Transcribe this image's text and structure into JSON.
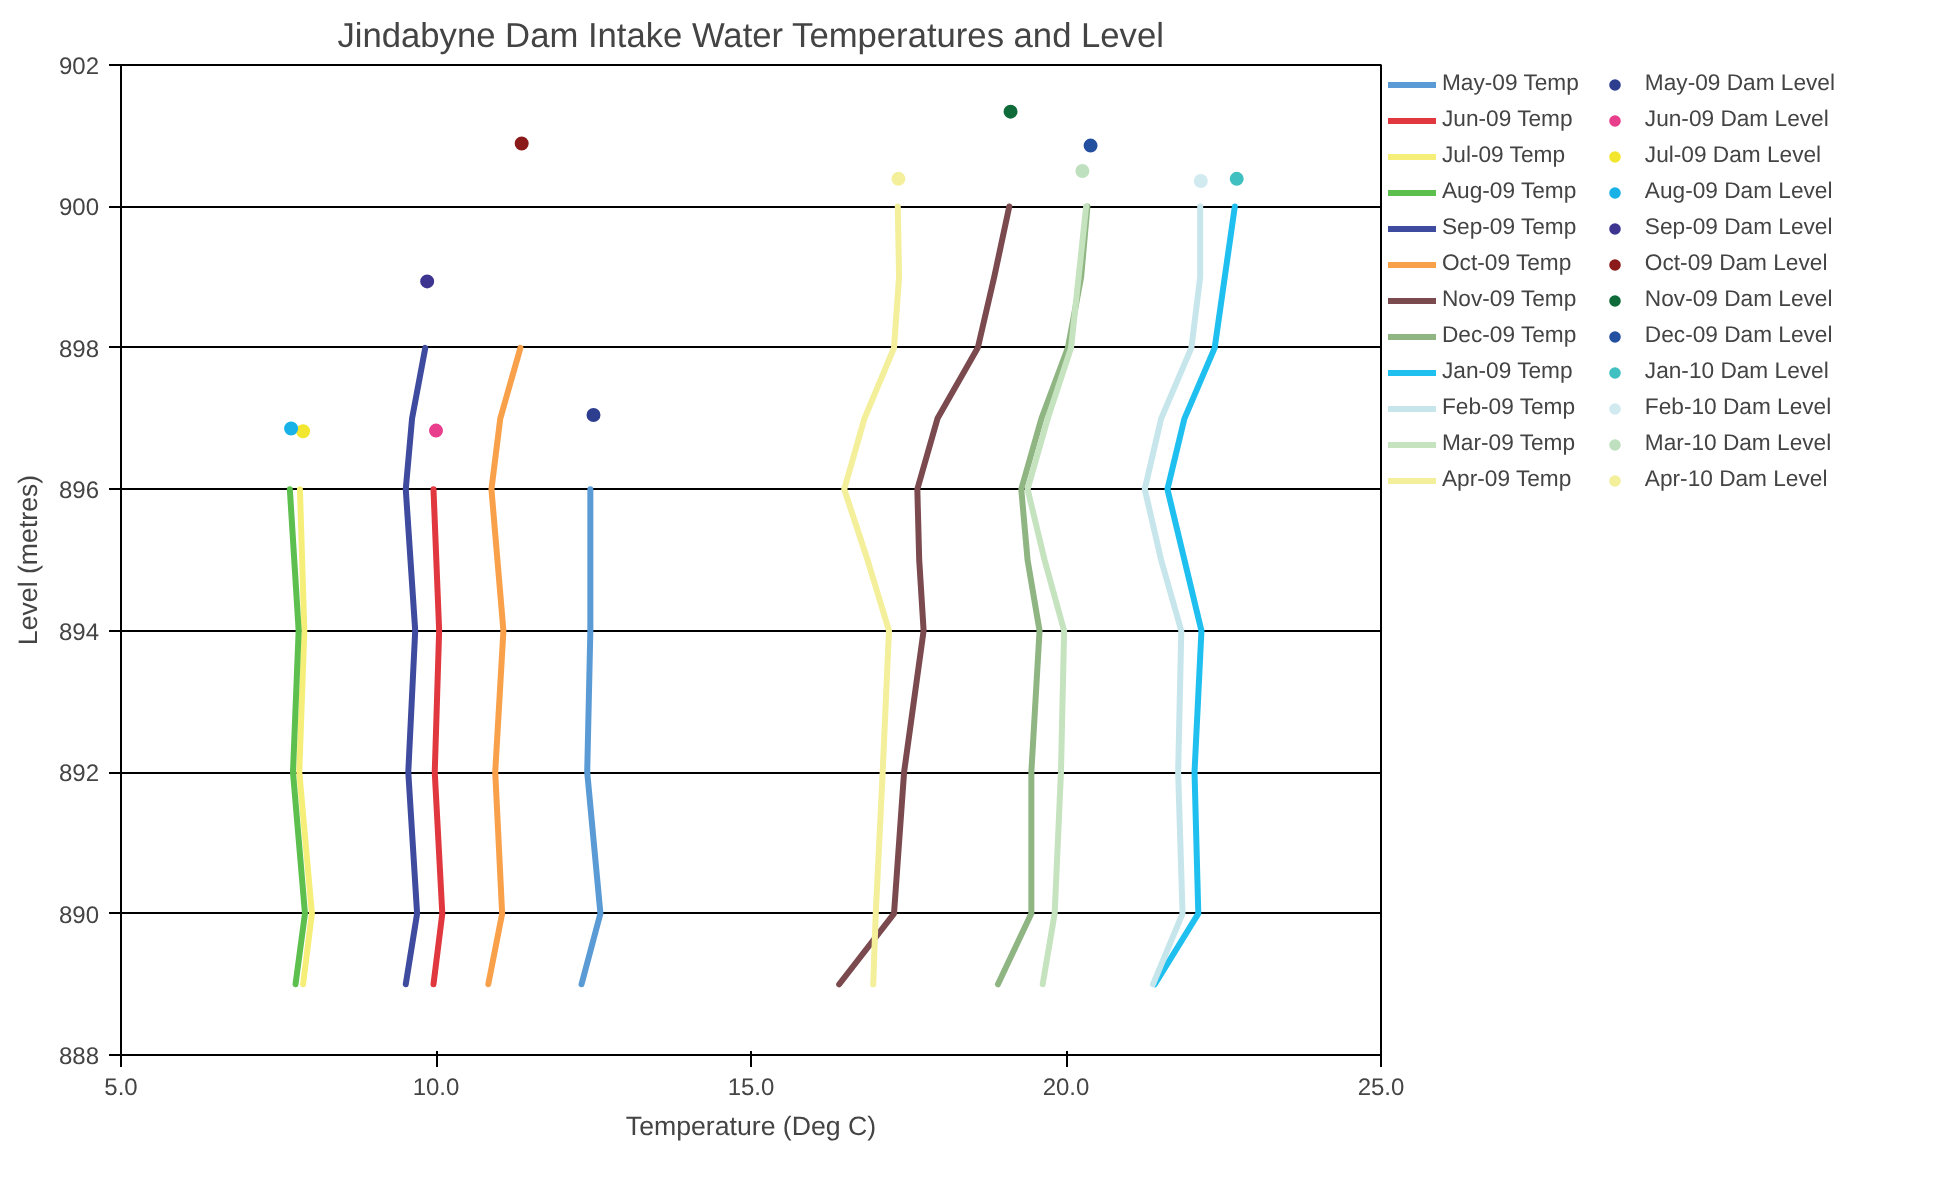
{
  "chart_data": {
    "type": "line",
    "title": "Jindabyne Dam Intake Water Temperatures and Level",
    "xlabel": "Temperature (Deg C)",
    "ylabel": "Level (metres)",
    "xlim": [
      5,
      25
    ],
    "xticks": [
      {
        "value": 5,
        "label": "5.0"
      },
      {
        "value": 10,
        "label": "10.0"
      },
      {
        "value": 15,
        "label": "15.0"
      },
      {
        "value": 20,
        "label": "20.0"
      },
      {
        "value": 25,
        "label": "25.0"
      }
    ],
    "ylim": [
      888,
      902
    ],
    "yticks": [
      888,
      890,
      892,
      894,
      896,
      898,
      900,
      902
    ],
    "grid": "y",
    "legend": "right",
    "line_style": "solid",
    "series": [
      {
        "name": "May-09 Temp",
        "color": "#5b9bd5",
        "x": [
          12.45,
          12.45,
          12.4,
          12.61,
          12.31
        ],
        "values": [
          896,
          894,
          892,
          890,
          889
        ]
      },
      {
        "name": "Jun-09 Temp",
        "color": "#e0383e",
        "x": [
          9.96,
          10.05,
          9.98,
          10.1,
          9.96
        ],
        "values": [
          896,
          894,
          892,
          890,
          889
        ]
      },
      {
        "name": "Jul-09 Temp",
        "color": "#f5ef7a",
        "x": [
          7.84,
          7.91,
          7.83,
          8.03,
          7.89
        ],
        "values": [
          896,
          894,
          892,
          890,
          889
        ]
      },
      {
        "name": "Aug-09 Temp",
        "color": "#5cbf4e",
        "x": [
          7.68,
          7.82,
          7.73,
          7.92,
          7.77
        ],
        "values": [
          896,
          894,
          892,
          890,
          889
        ]
      },
      {
        "name": "Sep-09 Temp",
        "color": "#3f4b9e",
        "x": [
          9.83,
          9.62,
          9.52,
          9.67,
          9.56,
          9.7,
          9.52
        ],
        "values": [
          898,
          897,
          896,
          894,
          892,
          890,
          889
        ]
      },
      {
        "name": "Oct-09 Temp",
        "color": "#f9a04a",
        "x": [
          11.34,
          11.02,
          10.88,
          11.07,
          10.94,
          11.05,
          10.83
        ],
        "values": [
          898,
          897,
          896,
          894,
          892,
          890,
          889
        ]
      },
      {
        "name": "Nov-09 Temp",
        "color": "#7b4a4e",
        "x": [
          19.1,
          18.86,
          18.6,
          17.96,
          17.64,
          17.67,
          17.74,
          17.43,
          17.27,
          16.4
        ],
        "values": [
          900,
          899,
          898,
          897,
          896,
          895,
          894,
          892,
          890,
          889
        ]
      },
      {
        "name": "Dec-09 Temp",
        "color": "#8fb583",
        "x": [
          20.34,
          20.24,
          20.03,
          19.61,
          19.29,
          19.39,
          19.58,
          19.45,
          19.45,
          18.92
        ],
        "values": [
          900,
          899,
          898,
          897,
          896,
          895,
          894,
          892,
          890,
          889
        ]
      },
      {
        "name": "Jan-09 Temp",
        "color": "#1fc0ef",
        "x": [
          22.68,
          22.52,
          22.36,
          21.88,
          21.61,
          21.88,
          22.15,
          22.04,
          22.1,
          21.41
        ],
        "values": [
          900,
          899,
          898,
          897,
          896,
          895,
          894,
          892,
          890,
          889
        ]
      },
      {
        "name": "Feb-09 Temp",
        "color": "#c6e6ec",
        "x": [
          22.13,
          22.13,
          21.99,
          21.51,
          21.25,
          21.51,
          21.83,
          21.78,
          21.85,
          21.38
        ],
        "values": [
          900,
          899,
          898,
          897,
          896,
          895,
          894,
          892,
          890,
          889
        ]
      },
      {
        "name": "Mar-09 Temp",
        "color": "#c5e3bf",
        "x": [
          20.32,
          20.08,
          19.71,
          19.39,
          19.66,
          19.97,
          19.92,
          19.82,
          19.63
        ],
        "values": [
          900,
          898,
          897,
          896,
          895,
          894,
          892,
          890,
          889
        ]
      },
      {
        "name": "Apr-09 Temp",
        "color": "#f3ef9a",
        "x": [
          17.33,
          17.35,
          17.27,
          16.8,
          16.48,
          16.85,
          17.19,
          17.09,
          16.98,
          16.94
        ],
        "values": [
          900,
          899,
          898,
          897,
          896,
          895,
          894,
          892,
          890,
          889
        ]
      },
      {
        "name": "May-09 Dam Level",
        "type": "scatter",
        "color": "#2e3e8f",
        "x": [
          12.5
        ],
        "values": [
          897.05
        ]
      },
      {
        "name": "Jun-09 Dam Level",
        "type": "scatter",
        "color": "#e83e8c",
        "x": [
          10.0
        ],
        "values": [
          896.83
        ]
      },
      {
        "name": "Jul-09 Dam Level",
        "type": "scatter",
        "color": "#f2e62e",
        "x": [
          7.89
        ],
        "values": [
          896.82
        ]
      },
      {
        "name": "Aug-09 Dam Level",
        "type": "scatter",
        "color": "#19b2e6",
        "x": [
          7.7
        ],
        "values": [
          896.86
        ]
      },
      {
        "name": "Sep-09 Dam Level",
        "type": "scatter",
        "color": "#3d3590",
        "x": [
          9.86
        ],
        "values": [
          898.94
        ]
      },
      {
        "name": "Oct-09 Dam Level",
        "type": "scatter",
        "color": "#8b1a1a",
        "x": [
          11.36
        ],
        "values": [
          900.89
        ]
      },
      {
        "name": "Nov-09 Dam Level",
        "type": "scatter",
        "color": "#0f6b3a",
        "x": [
          19.12
        ],
        "values": [
          901.34
        ]
      },
      {
        "name": "Dec-09 Dam Level",
        "type": "scatter",
        "color": "#2450a0",
        "x": [
          20.39
        ],
        "values": [
          900.86
        ]
      },
      {
        "name": "Jan-10 Dam Level",
        "type": "scatter",
        "color": "#40c0c0",
        "x": [
          22.71
        ],
        "values": [
          900.39
        ]
      },
      {
        "name": "Feb-10 Dam Level",
        "type": "scatter",
        "color": "#d0eaf0",
        "x": [
          22.14
        ],
        "values": [
          900.36
        ]
      },
      {
        "name": "Mar-10 Dam Level",
        "type": "scatter",
        "color": "#bfe0bf",
        "x": [
          20.26
        ],
        "values": [
          900.5
        ]
      },
      {
        "name": "Apr-10 Dam Level",
        "type": "scatter",
        "color": "#f3ef9a",
        "x": [
          17.34
        ],
        "values": [
          900.39
        ]
      }
    ]
  }
}
